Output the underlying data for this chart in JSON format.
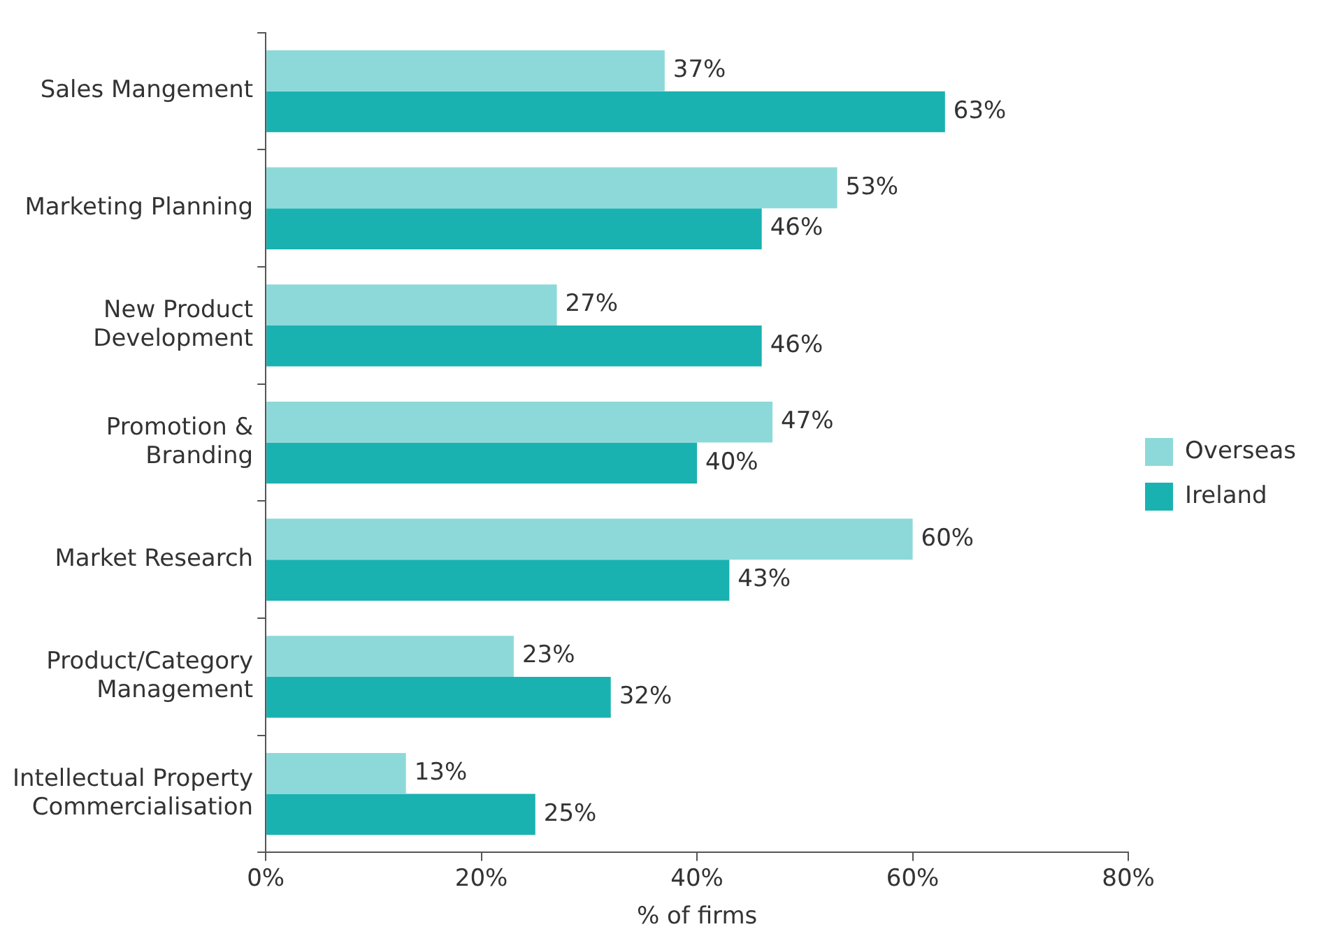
{
  "chart_data": {
    "type": "bar",
    "orientation": "horizontal",
    "xlabel": "% of firms",
    "categories": [
      "Sales Mangement",
      "Marketing Planning",
      "New Product\nDevelopment",
      "Promotion &\nBranding",
      "Market Research",
      "Product/Category\nManagement",
      "Intellectual Property\nCommercialisation"
    ],
    "series": [
      {
        "name": "Overseas",
        "color": "#8dd9d9",
        "values": [
          37,
          53,
          27,
          47,
          60,
          23,
          13
        ],
        "value_labels": [
          "37%",
          "53%",
          "27%",
          "47%",
          "60%",
          "23%",
          "13%"
        ]
      },
      {
        "name": "Ireland",
        "color": "#1ab1b1",
        "values": [
          63,
          46,
          46,
          40,
          43,
          32,
          25
        ],
        "value_labels": [
          "63%",
          "46%",
          "46%",
          "40%",
          "43%",
          "32%",
          "25%"
        ]
      }
    ],
    "xlim": [
      0,
      80
    ],
    "xticks": [
      {
        "value": 0,
        "label": "0%"
      },
      {
        "value": 20,
        "label": "20%"
      },
      {
        "value": 40,
        "label": "40%"
      },
      {
        "value": 60,
        "label": "60%"
      },
      {
        "value": 80,
        "label": "80%"
      }
    ],
    "grid": false,
    "legend": "right"
  }
}
